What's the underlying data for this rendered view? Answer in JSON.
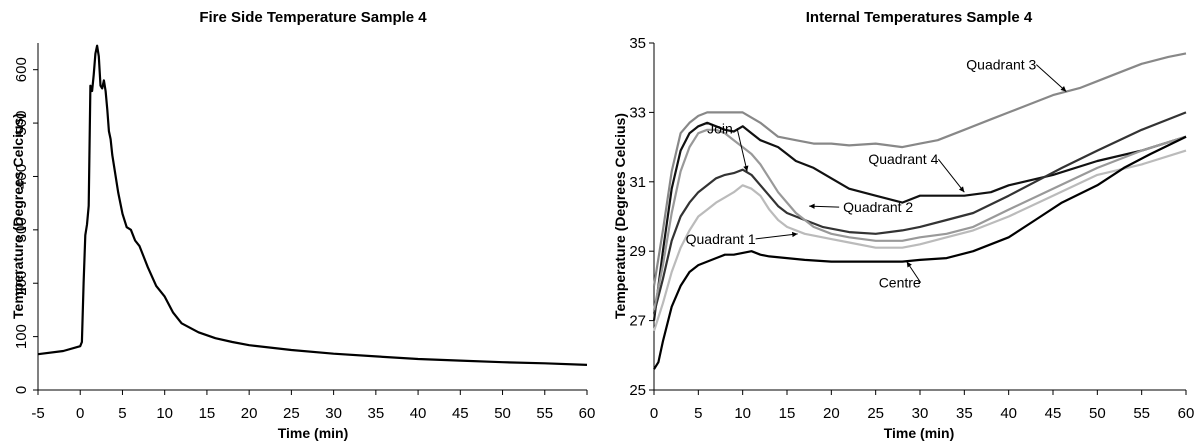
{
  "chart_data": [
    {
      "type": "line",
      "title": "Fire Side Temperature Sample 4",
      "xlabel": "Time (min)",
      "ylabel": "Temperature (Degrees Celcius)",
      "xlim": [
        -5,
        60
      ],
      "ylim": [
        0,
        650
      ],
      "xticks": [
        "-5",
        "0",
        "5",
        "10",
        "15",
        "20",
        "25",
        "30",
        "35",
        "40",
        "45",
        "50",
        "55",
        "60"
      ],
      "yticks": [
        "0",
        "100",
        "200",
        "300",
        "400",
        "500",
        "600"
      ],
      "grid": false,
      "series": [
        {
          "color": "#000000",
          "x": [
            -5,
            -2,
            0,
            0.2,
            0.4,
            0.6,
            0.8,
            1.0,
            1.2,
            1.4,
            1.6,
            1.8,
            2.0,
            2.2,
            2.4,
            2.6,
            2.8,
            3.0,
            3.2,
            3.4,
            3.6,
            3.8,
            4.0,
            4.5,
            5.0,
            5.5,
            6.0,
            6.5,
            7.0,
            7.5,
            8.0,
            9.0,
            10.0,
            11.0,
            12.0,
            14.0,
            16.0,
            18.0,
            20.0,
            25.0,
            30.0,
            35.0,
            40.0,
            45.0,
            50.0,
            55.0,
            60.0
          ],
          "y": [
            67,
            73,
            82,
            90,
            200,
            290,
            310,
            345,
            570,
            560,
            590,
            630,
            645,
            625,
            570,
            565,
            580,
            560,
            525,
            485,
            470,
            440,
            420,
            370,
            330,
            305,
            300,
            280,
            270,
            250,
            230,
            195,
            175,
            145,
            125,
            108,
            97,
            90,
            84,
            75,
            68,
            63,
            58,
            55,
            52,
            50,
            47
          ]
        }
      ]
    },
    {
      "type": "line",
      "title": "Internal Temperatures Sample 4",
      "xlabel": "Time (min)",
      "ylabel": "Temperature (Degrees Celcius)",
      "xlim": [
        0,
        60
      ],
      "ylim": [
        25,
        35
      ],
      "xticks": [
        "0",
        "5",
        "10",
        "15",
        "20",
        "25",
        "30",
        "35",
        "40",
        "45",
        "50",
        "55",
        "60"
      ],
      "yticks": [
        "25",
        "27",
        "29",
        "31",
        "33",
        "35"
      ],
      "grid": false,
      "series": [
        {
          "color": "#888888",
          "x": [
            0,
            1,
            2,
            3,
            4,
            5,
            6,
            7,
            8,
            10,
            12,
            14,
            16,
            18,
            20,
            22,
            25,
            28,
            30,
            32,
            35,
            38,
            40,
            42,
            45,
            48,
            50,
            52,
            55,
            58,
            60
          ],
          "y": [
            28.0,
            29.6,
            31.3,
            32.4,
            32.7,
            32.9,
            33.0,
            33.0,
            33.0,
            33.0,
            32.7,
            32.3,
            32.2,
            32.1,
            32.1,
            32.05,
            32.1,
            32.0,
            32.1,
            32.2,
            32.5,
            32.8,
            33.0,
            33.2,
            33.5,
            33.7,
            33.9,
            34.1,
            34.4,
            34.6,
            34.7
          ]
        },
        {
          "color": "#111111",
          "x": [
            0,
            1,
            2,
            3,
            4,
            5,
            6,
            7,
            8,
            9,
            10,
            11,
            12,
            14,
            15,
            16,
            18,
            20,
            22,
            25,
            28,
            30,
            32,
            35,
            38,
            40,
            45,
            50,
            55,
            60
          ],
          "y": [
            27.0,
            29.0,
            30.8,
            31.9,
            32.4,
            32.6,
            32.7,
            32.6,
            32.5,
            32.45,
            32.6,
            32.4,
            32.2,
            32.0,
            31.8,
            31.6,
            31.4,
            31.1,
            30.8,
            30.6,
            30.4,
            30.6,
            30.6,
            30.6,
            30.7,
            30.9,
            31.2,
            31.6,
            31.9,
            32.3
          ]
        },
        {
          "color": "#333333",
          "x": [
            0,
            1,
            2,
            3,
            4,
            5,
            6,
            7,
            8,
            9,
            10,
            11,
            12,
            13,
            14,
            15,
            17,
            19,
            22,
            25,
            28,
            30,
            33,
            36,
            40,
            43,
            46,
            50,
            55,
            60
          ],
          "y": [
            27.2,
            28.2,
            29.3,
            30.0,
            30.4,
            30.7,
            30.9,
            31.1,
            31.2,
            31.25,
            31.35,
            31.2,
            30.9,
            30.6,
            30.3,
            30.1,
            29.9,
            29.7,
            29.55,
            29.5,
            29.6,
            29.7,
            29.9,
            30.1,
            30.6,
            31.0,
            31.4,
            31.9,
            32.5,
            33.0
          ]
        },
        {
          "color": "#999999",
          "x": [
            0,
            1,
            2,
            3,
            4,
            5,
            6,
            7,
            8,
            9,
            10,
            11,
            12,
            13,
            14,
            15,
            16,
            18,
            20,
            22,
            25,
            28,
            30,
            33,
            36,
            40,
            45,
            50,
            55,
            60
          ],
          "y": [
            27.3,
            28.6,
            30.1,
            31.3,
            32.0,
            32.4,
            32.5,
            32.5,
            32.4,
            32.2,
            32.0,
            31.8,
            31.5,
            31.1,
            30.7,
            30.4,
            30.1,
            29.7,
            29.5,
            29.4,
            29.3,
            29.3,
            29.4,
            29.5,
            29.7,
            30.2,
            30.8,
            31.4,
            31.9,
            32.3
          ]
        },
        {
          "color": "#bbbbbb",
          "x": [
            0,
            1,
            2,
            3,
            4,
            5,
            6,
            7,
            8,
            9,
            10,
            11,
            12,
            13,
            14,
            15,
            17,
            20,
            22,
            25,
            28,
            30,
            33,
            36,
            40,
            45,
            50,
            55,
            60
          ],
          "y": [
            26.7,
            27.5,
            28.4,
            29.1,
            29.6,
            30.0,
            30.2,
            30.4,
            30.55,
            30.7,
            30.9,
            30.8,
            30.6,
            30.2,
            29.9,
            29.7,
            29.5,
            29.35,
            29.25,
            29.1,
            29.1,
            29.2,
            29.4,
            29.6,
            30.0,
            30.6,
            31.2,
            31.5,
            31.9
          ]
        },
        {
          "color": "#000000",
          "x": [
            0,
            0.5,
            1,
            2,
            3,
            4,
            5,
            6,
            7,
            8,
            9,
            10,
            11,
            12,
            13,
            15,
            17,
            20,
            22,
            25,
            28,
            30,
            33,
            36,
            40,
            43,
            46,
            50,
            53,
            56,
            60
          ],
          "y": [
            25.6,
            25.8,
            26.4,
            27.4,
            28.0,
            28.4,
            28.6,
            28.7,
            28.8,
            28.9,
            28.9,
            28.95,
            29.0,
            28.9,
            28.85,
            28.8,
            28.75,
            28.7,
            28.7,
            28.7,
            28.7,
            28.75,
            28.8,
            29.0,
            29.4,
            29.9,
            30.4,
            30.9,
            31.4,
            31.8,
            32.3
          ]
        }
      ],
      "annotations": [
        {
          "label": "Quadrant 3",
          "x": 46.5,
          "y": 33.6
        },
        {
          "label": "Quadrant 4",
          "x": 35.0,
          "y": 30.7
        },
        {
          "label": "Join",
          "x": 10.5,
          "y": 31.3
        },
        {
          "label": "Quadrant 2",
          "x": 17.5,
          "y": 30.3
        },
        {
          "label": "Quadrant 1",
          "x": 16.2,
          "y": 29.5
        },
        {
          "label": "Centre",
          "x": 28.5,
          "y": 28.7
        }
      ]
    }
  ]
}
